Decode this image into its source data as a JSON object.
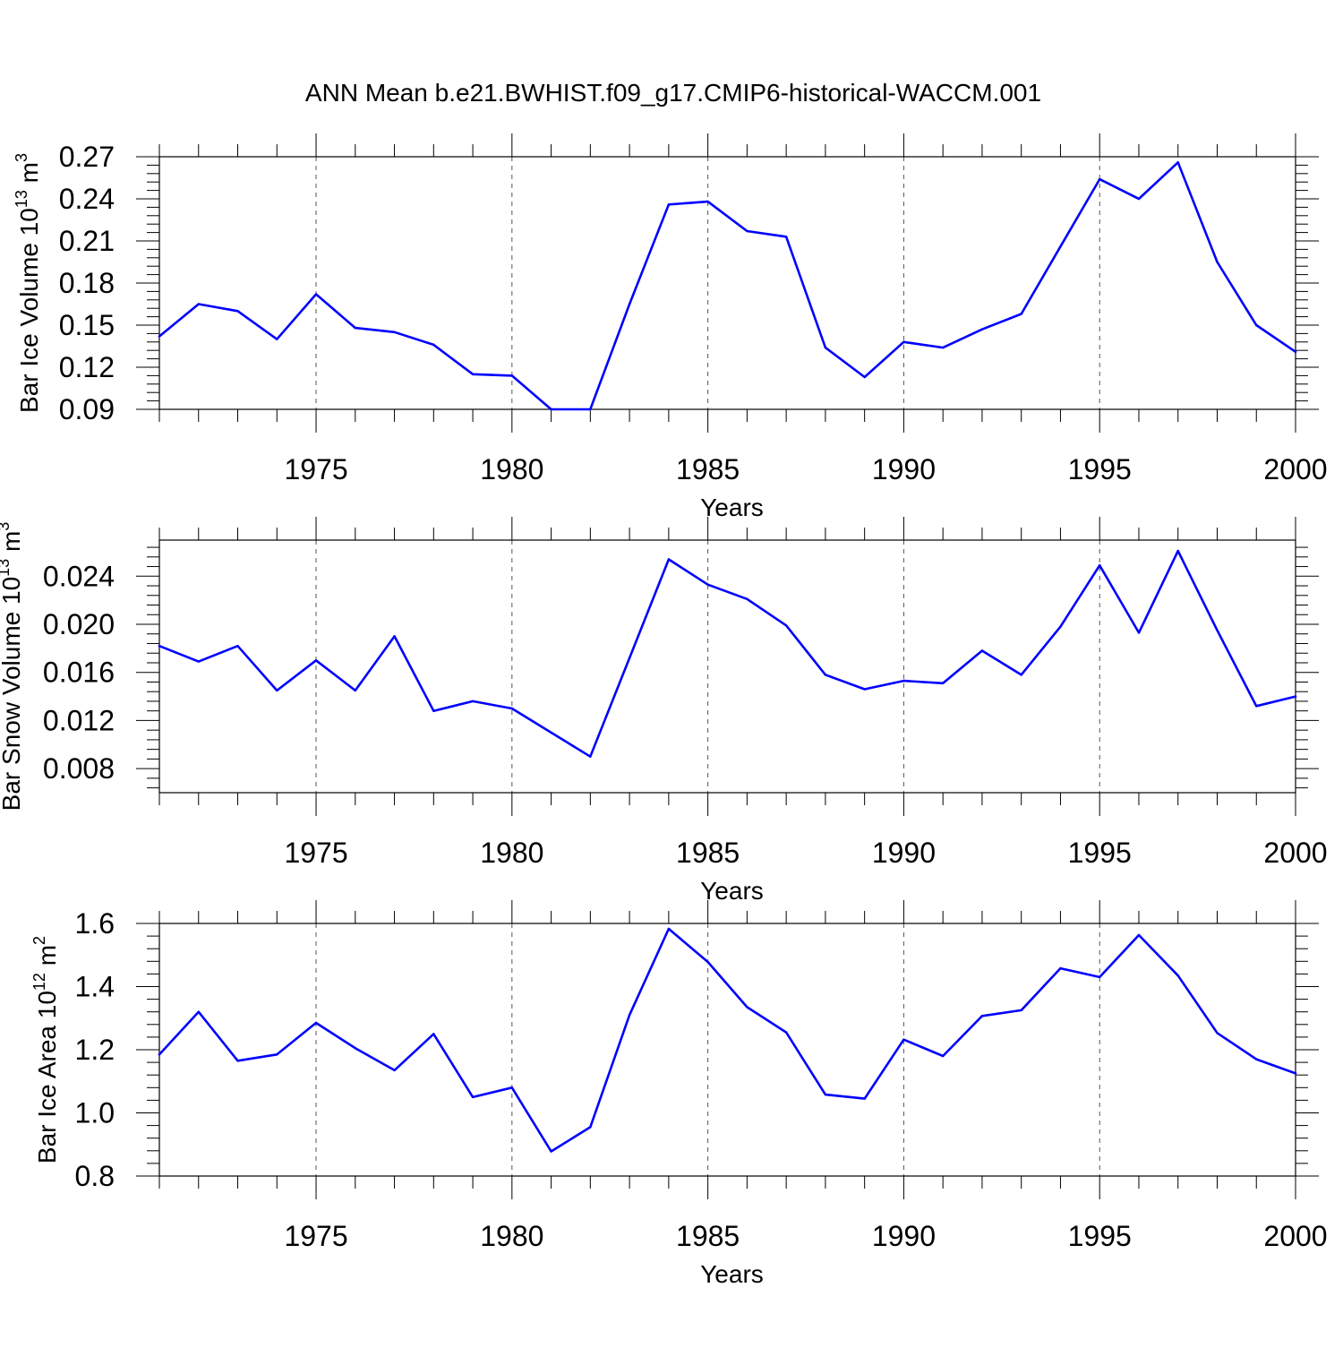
{
  "figure_title": "ANN Mean b.e21.BWHIST.f09_g17.CMIP6-historical-WACCM.001",
  "colors": {
    "line": "#0000ff",
    "axis": "#000000",
    "grid": "#555555"
  },
  "chart_data": [
    {
      "type": "line",
      "ylabel": {
        "main": "Bar Ice Volume 10",
        "exp": "13",
        "unit": " m",
        "unit_exp": "3"
      },
      "xlabel": "Years",
      "xlim": [
        1971,
        2000
      ],
      "ylim": [
        0.09,
        0.27
      ],
      "yticks": [
        0.09,
        0.12,
        0.15,
        0.18,
        0.21,
        0.24,
        0.27
      ],
      "ytick_labels": [
        "0.09",
        "0.12",
        "0.15",
        "0.18",
        "0.21",
        "0.24",
        "0.27"
      ],
      "xticks": [
        1975,
        1980,
        1985,
        1990,
        1995,
        2000
      ],
      "xtick_labels": [
        "1975",
        "1980",
        "1985",
        "1990",
        "1995",
        "2000"
      ],
      "grid": "x-dashed",
      "series": [
        {
          "name": "Bar Ice Volume",
          "x": [
            1971,
            1972,
            1973,
            1974,
            1975,
            1976,
            1977,
            1978,
            1979,
            1980,
            1981,
            1982,
            1983,
            1984,
            1985,
            1986,
            1987,
            1988,
            1989,
            1990,
            1991,
            1992,
            1993,
            1994,
            1995,
            1996,
            1997,
            1998,
            1999,
            2000
          ],
          "values": [
            0.142,
            0.165,
            0.16,
            0.14,
            0.172,
            0.148,
            0.145,
            0.136,
            0.115,
            0.114,
            0.09,
            0.09,
            0.165,
            0.236,
            0.238,
            0.217,
            0.213,
            0.134,
            0.113,
            0.138,
            0.134,
            0.147,
            0.158,
            0.206,
            0.254,
            0.24,
            0.266,
            0.195,
            0.15,
            0.131
          ]
        }
      ]
    },
    {
      "type": "line",
      "ylabel": {
        "main": "Bar Snow Volume 10",
        "exp": "13",
        "unit": " m",
        "unit_exp": "3"
      },
      "xlabel": "Years",
      "xlim": [
        1971,
        2000
      ],
      "ylim": [
        0.006,
        0.027
      ],
      "yticks": [
        0.008,
        0.012,
        0.016,
        0.02,
        0.024
      ],
      "ytick_labels": [
        "0.008",
        "0.012",
        "0.016",
        "0.020",
        "0.024"
      ],
      "xticks": [
        1975,
        1980,
        1985,
        1990,
        1995,
        2000
      ],
      "xtick_labels": [
        "1975",
        "1980",
        "1985",
        "1990",
        "1995",
        "2000"
      ],
      "grid": "x-dashed",
      "series": [
        {
          "name": "Bar Snow Volume",
          "x": [
            1971,
            1972,
            1973,
            1974,
            1975,
            1976,
            1977,
            1978,
            1979,
            1980,
            1981,
            1982,
            1983,
            1984,
            1985,
            1986,
            1987,
            1988,
            1989,
            1990,
            1991,
            1992,
            1993,
            1994,
            1995,
            1996,
            1997,
            1998,
            1999,
            2000
          ],
          "values": [
            0.0182,
            0.0169,
            0.0182,
            0.0145,
            0.017,
            0.0145,
            0.019,
            0.0128,
            0.0136,
            0.013,
            0.011,
            0.009,
            0.0172,
            0.0254,
            0.0233,
            0.0221,
            0.0199,
            0.0158,
            0.0146,
            0.0153,
            0.0151,
            0.0178,
            0.0158,
            0.0198,
            0.0249,
            0.0193,
            0.0261,
            0.0195,
            0.0132,
            0.014
          ]
        }
      ]
    },
    {
      "type": "line",
      "ylabel": {
        "main": "Bar Ice Area 10",
        "exp": "12",
        "unit": " m",
        "unit_exp": "2"
      },
      "xlabel": "Years",
      "xlim": [
        1971,
        2000
      ],
      "ylim": [
        0.8,
        1.6
      ],
      "yticks": [
        0.8,
        1.0,
        1.2,
        1.4,
        1.6
      ],
      "ytick_labels": [
        "0.8",
        "1.0",
        "1.2",
        "1.4",
        "1.6"
      ],
      "xticks": [
        1975,
        1980,
        1985,
        1990,
        1995,
        2000
      ],
      "xtick_labels": [
        "1975",
        "1980",
        "1985",
        "1990",
        "1995",
        "2000"
      ],
      "grid": "x-dashed",
      "series": [
        {
          "name": "Bar Ice Area",
          "x": [
            1971,
            1972,
            1973,
            1974,
            1975,
            1976,
            1977,
            1978,
            1979,
            1980,
            1981,
            1982,
            1983,
            1984,
            1985,
            1986,
            1987,
            1988,
            1989,
            1990,
            1991,
            1992,
            1993,
            1994,
            1995,
            1996,
            1997,
            1998,
            1999,
            2000
          ],
          "values": [
            1.185,
            1.32,
            1.165,
            1.185,
            1.285,
            1.205,
            1.135,
            1.25,
            1.05,
            1.08,
            0.878,
            0.955,
            1.31,
            1.583,
            1.478,
            1.335,
            1.255,
            1.058,
            1.045,
            1.232,
            1.18,
            1.307,
            1.325,
            1.458,
            1.43,
            1.563,
            1.435,
            1.253,
            1.17,
            1.125
          ]
        }
      ]
    }
  ]
}
